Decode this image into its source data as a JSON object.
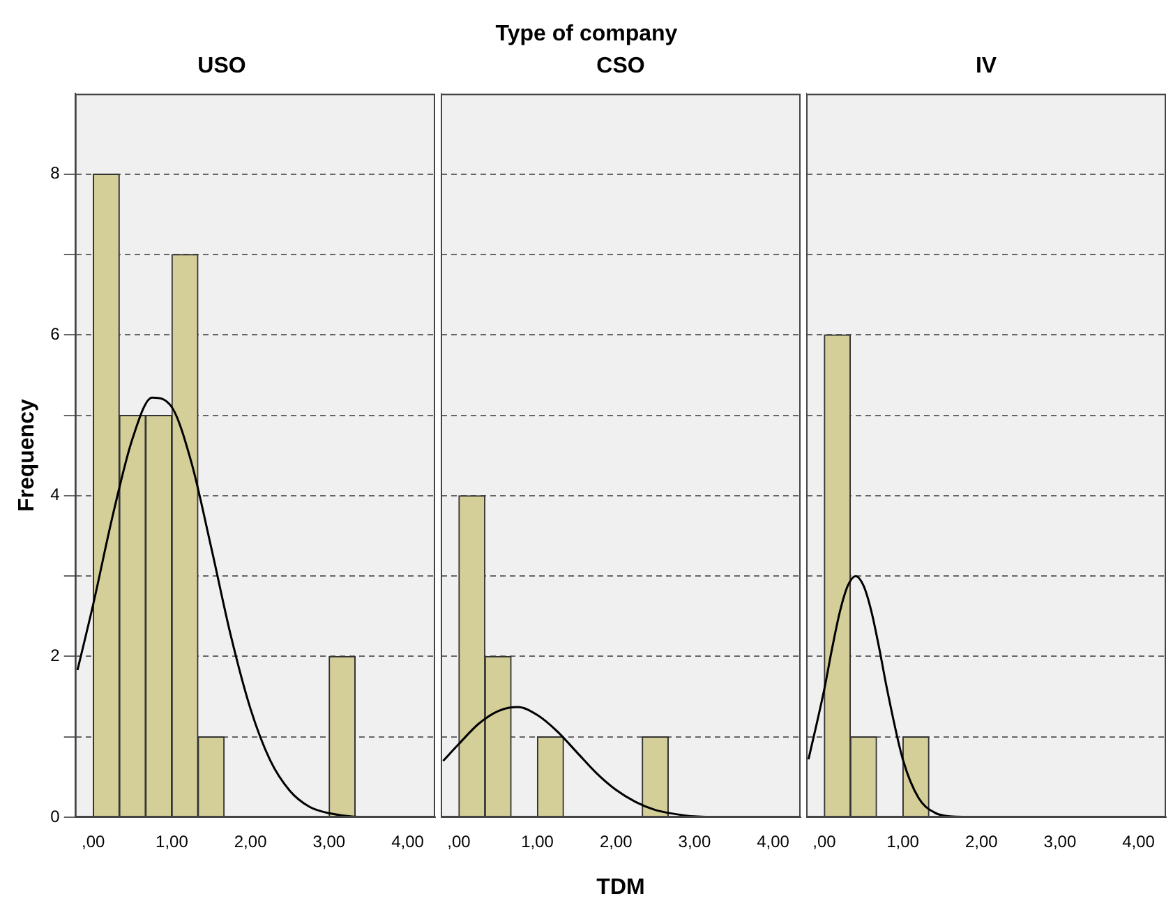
{
  "chart_data": [
    {
      "type": "histogram",
      "title": "USO",
      "ylabel": "Frequency",
      "xlim": [
        -0.23,
        4.35
      ],
      "ylim": [
        0,
        9
      ],
      "grid": "y",
      "legend": false,
      "xticks": [
        {
          "value": 0,
          "label": ",00"
        },
        {
          "value": 1,
          "label": "1,00"
        },
        {
          "value": 2,
          "label": "2,00"
        },
        {
          "value": 3,
          "label": "3,00"
        },
        {
          "value": 4,
          "label": "4,00"
        }
      ],
      "yticks": [
        0,
        {
          "value": 1,
          "label": null
        },
        2,
        {
          "value": 3,
          "label": null
        },
        4,
        {
          "value": 5,
          "label": null
        },
        6,
        {
          "value": 7,
          "label": null
        },
        8
      ],
      "series": [
        {
          "type": "histogram",
          "color": "#d4cf98",
          "bins": [
            0,
            0.333,
            0.667,
            1,
            1.333,
            1.667,
            2,
            2.333,
            2.667,
            3,
            3.333
          ],
          "values": [
            8,
            5,
            5,
            7,
            1,
            0,
            0,
            0,
            0,
            2
          ]
        },
        {
          "type": "line",
          "color": "#000000",
          "x": [
            -0.2,
            0,
            0.25,
            0.5,
            0.75,
            1,
            1.25,
            1.5,
            1.75,
            2,
            2.25,
            2.5,
            2.75,
            3,
            3.5,
            4.3
          ],
          "values": [
            1.83,
            2.65,
            3.76,
            4.71,
            5.22,
            5.1,
            4.41,
            3.36,
            2.26,
            1.35,
            0.71,
            0.33,
            0.13,
            0.05,
            0,
            0
          ]
        }
      ]
    },
    {
      "type": "histogram",
      "title": "CSO",
      "xlabel": "TDM",
      "annotations": [
        "Type of company"
      ],
      "xlim": [
        -0.23,
        4.35
      ],
      "ylim": [
        0,
        9
      ],
      "grid": "y",
      "legend": false,
      "tick_labels": "x",
      "xticks": [
        {
          "value": 0,
          "label": ",00"
        },
        {
          "value": 1,
          "label": "1,00"
        },
        {
          "value": 2,
          "label": "2,00"
        },
        {
          "value": 3,
          "label": "3,00"
        },
        {
          "value": 4,
          "label": "4,00"
        }
      ],
      "yticks": [
        0,
        {
          "value": 1,
          "label": null
        },
        2,
        {
          "value": 3,
          "label": null
        },
        4,
        {
          "value": 5,
          "label": null
        },
        6,
        {
          "value": 7,
          "label": null
        },
        8
      ],
      "series": [
        {
          "type": "histogram",
          "color": "#d4cf98",
          "bins": [
            0,
            0.333,
            0.667,
            1,
            1.333,
            1.667,
            2,
            2.333,
            2.667
          ],
          "values": [
            4,
            2,
            0,
            1,
            0,
            0,
            0,
            1
          ]
        },
        {
          "type": "line",
          "color": "#000000",
          "x": [
            -0.2,
            0,
            0.25,
            0.5,
            0.75,
            1,
            1.25,
            1.5,
            1.75,
            2,
            2.25,
            2.5,
            2.75,
            3,
            3.5,
            4.3
          ],
          "values": [
            0.7,
            0.91,
            1.16,
            1.32,
            1.37,
            1.27,
            1.07,
            0.81,
            0.55,
            0.34,
            0.19,
            0.09,
            0.04,
            0.01,
            0,
            0
          ]
        }
      ]
    },
    {
      "type": "histogram",
      "title": "IV",
      "xlim": [
        -0.23,
        4.35
      ],
      "ylim": [
        0,
        9
      ],
      "grid": "y",
      "legend": false,
      "tick_labels": "x",
      "xticks": [
        {
          "value": 0,
          "label": ",00"
        },
        {
          "value": 1,
          "label": "1,00"
        },
        {
          "value": 2,
          "label": "2,00"
        },
        {
          "value": 3,
          "label": "3,00"
        },
        {
          "value": 4,
          "label": "4,00"
        }
      ],
      "yticks": [
        0,
        {
          "value": 1,
          "label": null
        },
        2,
        {
          "value": 3,
          "label": null
        },
        4,
        {
          "value": 5,
          "label": null
        },
        6,
        {
          "value": 7,
          "label": null
        },
        8
      ],
      "series": [
        {
          "type": "histogram",
          "color": "#d4cf98",
          "bins": [
            0,
            0.333,
            0.667,
            1,
            1.333
          ],
          "values": [
            6,
            1,
            0,
            1
          ]
        },
        {
          "type": "line",
          "color": "#000000",
          "x": [
            -0.2,
            0,
            0.1,
            0.2,
            0.3,
            0.4,
            0.5,
            0.6,
            0.7,
            0.8,
            1,
            1.2,
            1.4,
            1.6,
            2,
            4.3
          ],
          "values": [
            0.72,
            1.59,
            2.1,
            2.56,
            2.88,
            3,
            2.88,
            2.56,
            2.1,
            1.59,
            0.72,
            0.24,
            0.06,
            0.01,
            0,
            0
          ]
        }
      ]
    }
  ]
}
